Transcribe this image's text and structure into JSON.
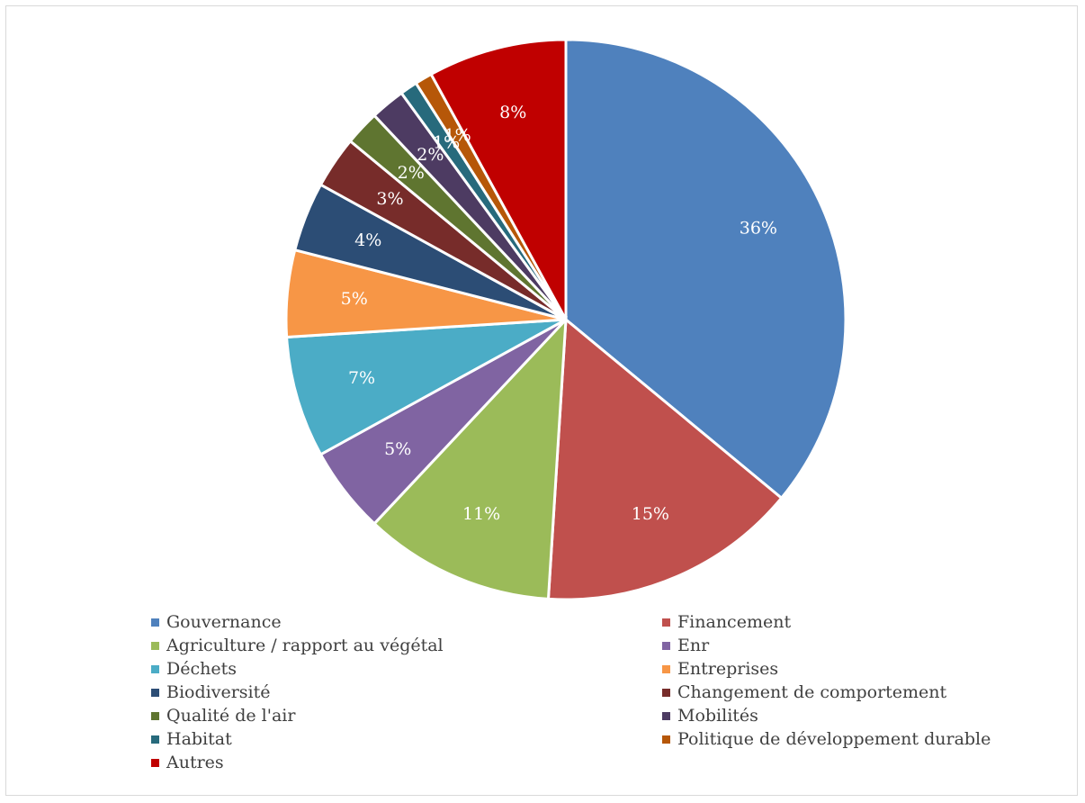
{
  "chart_data": {
    "type": "pie",
    "title": "",
    "start_angle_deg": 0,
    "direction": "clockwise",
    "slices": [
      {
        "name": "Gouvernance",
        "value": 36,
        "label": "36%",
        "color": "#4f81bd"
      },
      {
        "name": "Financement",
        "value": 15,
        "label": "15%",
        "color": "#c0504d"
      },
      {
        "name": "Agriculture / rapport au végétal",
        "value": 11,
        "label": "11%",
        "color": "#9bbb59"
      },
      {
        "name": "Enr",
        "value": 5,
        "label": "5%",
        "color": "#8064a2"
      },
      {
        "name": "Déchets",
        "value": 7,
        "label": "7%",
        "color": "#4bacc6"
      },
      {
        "name": "Entreprises",
        "value": 5,
        "label": "5%",
        "color": "#f79646"
      },
      {
        "name": "Biodiversité",
        "value": 4,
        "label": "4%",
        "color": "#2c4d75"
      },
      {
        "name": "Changement de comportement",
        "value": 3,
        "label": "3%",
        "color": "#772c2a"
      },
      {
        "name": "Qualité de l'air",
        "value": 2,
        "label": "2%",
        "color": "#5f7530"
      },
      {
        "name": "Mobilités",
        "value": 2,
        "label": "2%",
        "color": "#4d3b62"
      },
      {
        "name": "Habitat",
        "value": 1,
        "label": "1%",
        "color": "#276a7c"
      },
      {
        "name": "Politique de développement durable",
        "value": 1,
        "label": "1%",
        "color": "#b65708"
      },
      {
        "name": "Autres",
        "value": 8,
        "label": "8%",
        "color": "#c00000"
      }
    ],
    "legend_position": "bottom"
  }
}
